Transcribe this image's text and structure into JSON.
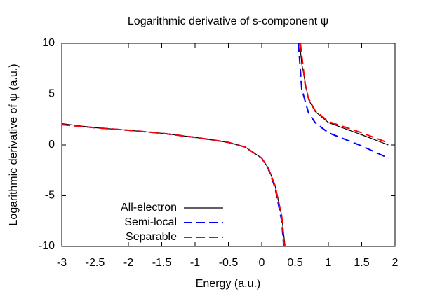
{
  "chart_data": {
    "type": "line",
    "title": "Logarithmic derivative of s-component ψ",
    "xlabel": "Energy (a.u.)",
    "ylabel": "Logarithmic derivative of ψ (a.u.)",
    "xlim": [
      -3,
      2
    ],
    "ylim": [
      -10,
      10
    ],
    "xticks": [
      -3,
      -2.5,
      -2,
      -1.5,
      -1,
      -0.5,
      0,
      0.5,
      1,
      1.5,
      2
    ],
    "yticks": [
      -10,
      -5,
      0,
      5,
      10
    ],
    "legend": "bottom-left",
    "series": [
      {
        "name": "All-electron",
        "color": "#000000",
        "style": "solid",
        "x": [
          -3,
          -2.5,
          -2,
          -1.5,
          -1,
          -0.5,
          -0.25,
          0,
          0.1,
          0.2,
          0.3,
          0.35,
          null,
          0.57,
          0.6,
          0.7,
          0.8,
          1,
          1.5,
          1.9
        ],
        "values": [
          2.1,
          1.7,
          1.45,
          1.15,
          0.75,
          0.25,
          -0.2,
          -1.3,
          -2.3,
          -4,
          -7,
          -10,
          null,
          10,
          8,
          4.5,
          3.3,
          2.2,
          1,
          0
        ]
      },
      {
        "name": "Semi-local",
        "color": "#0000ff",
        "style": "dashed",
        "x": [
          -3,
          -2.5,
          -2,
          -1.5,
          -1,
          -0.5,
          -0.25,
          0,
          0.1,
          0.2,
          0.3,
          0.33,
          null,
          0.55,
          0.6,
          0.7,
          0.8,
          1,
          1.5,
          1.9
        ],
        "values": [
          2,
          1.7,
          1.45,
          1.15,
          0.75,
          0.25,
          -0.2,
          -1.3,
          -2.4,
          -4.2,
          -7.5,
          -10,
          null,
          10,
          5.5,
          3.2,
          2.2,
          1.2,
          -0.1,
          -1.3
        ]
      },
      {
        "name": "Separable",
        "color": "#ff0000",
        "style": "dashed",
        "x": [
          -3,
          -2.5,
          -2,
          -1.5,
          -1,
          -0.5,
          -0.25,
          0,
          0.1,
          0.2,
          0.3,
          0.34,
          null,
          0.58,
          0.65,
          0.7,
          0.8,
          1,
          1.5,
          1.9
        ],
        "values": [
          2,
          1.7,
          1.45,
          1.15,
          0.75,
          0.25,
          -0.2,
          -1.3,
          -2.3,
          -4,
          -7,
          -10,
          null,
          10,
          6,
          4.6,
          3.4,
          2.3,
          1.2,
          0.2
        ]
      }
    ]
  }
}
